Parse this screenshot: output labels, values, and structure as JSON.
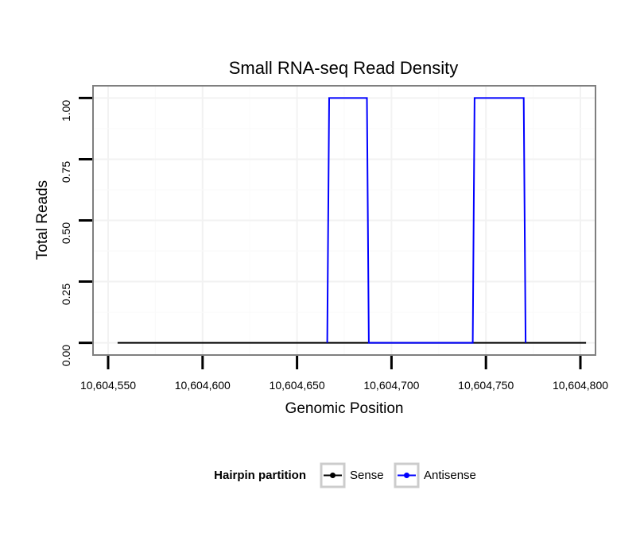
{
  "chart_data": {
    "type": "line",
    "title": "Small RNA-seq Read Density",
    "xlabel": "Genomic Position",
    "ylabel": "Total Reads",
    "xlim": [
      10604542,
      10604808
    ],
    "ylim": [
      -0.05,
      1.05
    ],
    "x_ticks": [
      10604550,
      10604600,
      10604650,
      10604700,
      10604750,
      10604800
    ],
    "x_tick_labels": [
      "10,604,550",
      "10,604,600",
      "10,604,650",
      "10,604,700",
      "10,604,750",
      "10,604,800"
    ],
    "y_ticks": [
      0,
      0.25,
      0.5,
      0.75,
      1.0
    ],
    "y_tick_labels": [
      "0.00",
      "0.25",
      "0.50",
      "0.75",
      "1.00"
    ],
    "grid": true,
    "legend": {
      "title": "Hairpin partition",
      "position": "bottom",
      "entries": [
        "Sense",
        "Antisense"
      ]
    },
    "series": [
      {
        "name": "Sense",
        "color": "#000000",
        "x": [
          10604555,
          10604803
        ],
        "y": [
          0,
          0
        ]
      },
      {
        "name": "Antisense",
        "color": "#0000ff",
        "x": [
          10604666,
          10604667,
          10604687,
          10604688,
          10604743,
          10604744,
          10604770,
          10604771
        ],
        "y": [
          0,
          1,
          1,
          0,
          0,
          1,
          1,
          0
        ]
      }
    ]
  }
}
